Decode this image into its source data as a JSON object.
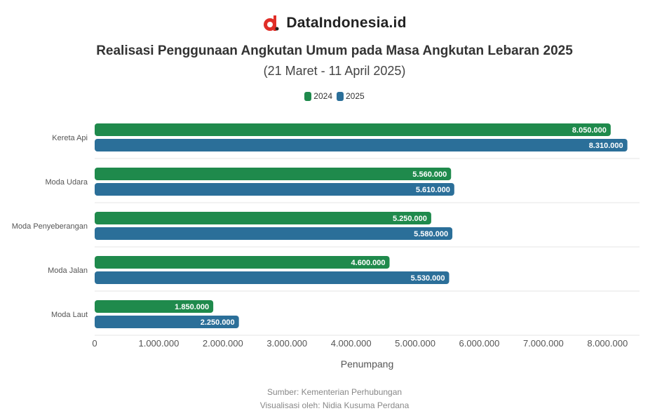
{
  "brand": {
    "name": "DataIndonesia.id",
    "logo_icon": "dataindonesia-logo-icon"
  },
  "colors": {
    "series_2024": "#1f8a4c",
    "series_2025": "#2b6f99",
    "grid": "#e6e6e6",
    "axis_text": "#555555",
    "logo_red": "#e02e28"
  },
  "chart_data": {
    "type": "bar",
    "orientation": "horizontal",
    "title": "Realisasi Penggunaan Angkutan Umum pada Masa Angkutan Lebaran 2025",
    "subtitle": "(21 Maret - 11 April 2025)",
    "categories": [
      "Kereta Api",
      "Moda Udara",
      "Moda Penyeberangan",
      "Moda Jalan",
      "Moda Laut"
    ],
    "series": [
      {
        "name": "2024",
        "values": [
          8050000,
          5560000,
          5250000,
          4600000,
          1850000
        ]
      },
      {
        "name": "2025",
        "values": [
          8310000,
          5610000,
          5580000,
          5530000,
          2250000
        ]
      }
    ],
    "data_labels": [
      [
        "8.050.000",
        "5.560.000",
        "5.250.000",
        "4.600.000",
        "1.850.000"
      ],
      [
        "8.310.000",
        "5.610.000",
        "5.580.000",
        "5.530.000",
        "2.250.000"
      ]
    ],
    "x_ticks": [
      "0",
      "1.000.000",
      "2.000.000",
      "3.000.000",
      "4.000.000",
      "5.000.000",
      "6.000.000",
      "7.000.000",
      "8.000.000"
    ],
    "xlabel": "Penumpang",
    "xlim": [
      0,
      8500000
    ],
    "grid": true,
    "legend": "top-center"
  },
  "footer": {
    "source": "Sumber: Kementerian Perhubungan",
    "visualized_by": "Visualisasi oleh: Nidia Kusuma Perdana"
  }
}
